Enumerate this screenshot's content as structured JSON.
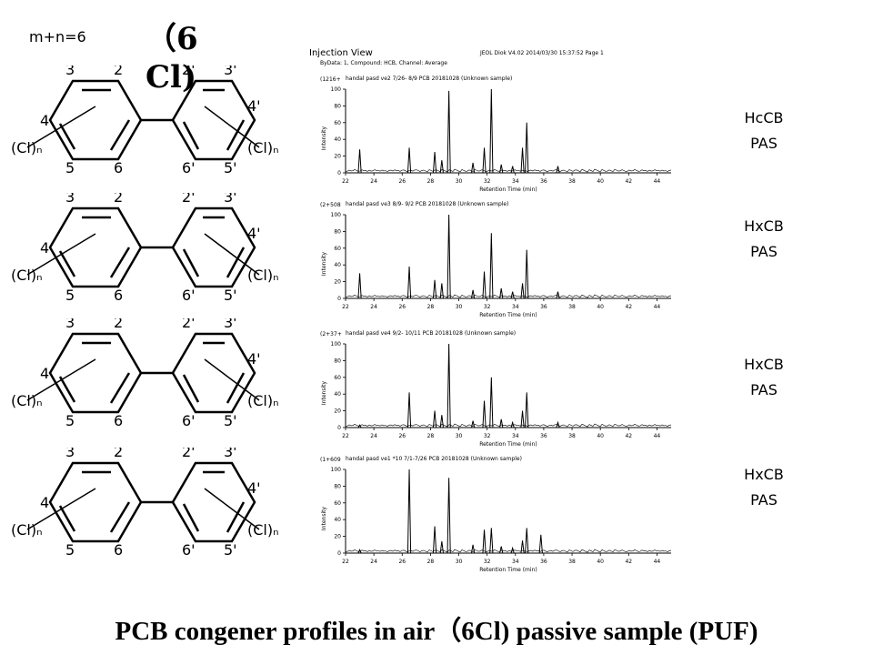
{
  "slide": {
    "mn_label": "m+n=6",
    "big_tag": "（6Cl)",
    "bottom_title": "PCB congener profiles in air（6Cl) passive sample (PUF)"
  },
  "molecule": {
    "pos_3": "3",
    "pos_2": "2",
    "pos_2p": "2'",
    "pos_3p": "3'",
    "pos_4": "4",
    "pos_4p": "4'",
    "cl_left": "(Cl)ₙ",
    "cl_right": "(Cl)ₙ",
    "pos_5": "5",
    "pos_6": "6",
    "pos_6p": "6'",
    "pos_5p": "5'"
  },
  "header": {
    "title": "Injection View",
    "info": "JEOL Diok V4.02  2014/03/30  15:37:52   Page 1",
    "subtitle": "ByData: 1, Compound: HCB, Channel: Average"
  },
  "panels": [
    {
      "scale": "(1216+",
      "caption": "handal pasd ve2 7/26- 8/9 PCB 20181028 (Unknown sample)",
      "side_line1": "HcCB",
      "side_line2": "PAS"
    },
    {
      "scale": "(2+508",
      "caption": "handal pasd ve3 8/9- 9/2 PCB 20181028 (Unknown sample)",
      "side_line1": "HxCB",
      "side_line2": "PAS"
    },
    {
      "scale": "(2+37+",
      "caption": "handal pasd ve4 9/2- 10/11 PCB 20181028 (Unknown sample)",
      "side_line1": "HxCB",
      "side_line2": "PAS"
    },
    {
      "scale": "(1+609",
      "caption": "handal pasd ve1 *10 7/1-7/26 PCB 20181028 (Unknown sample)",
      "side_line1": "HxCB",
      "side_line2": "PAS"
    }
  ],
  "axes": {
    "ylabel": "Intensity",
    "xlabel": "Retention Time (min)",
    "y_ticks": [
      "100",
      "80",
      "60",
      "40",
      "20",
      "0"
    ],
    "x_ticks": [
      "22",
      "24",
      "26",
      "28",
      "30",
      "32",
      "34",
      "36",
      "38",
      "40",
      "42",
      "44"
    ]
  },
  "chart_data": [
    {
      "type": "line",
      "xlabel": "Retention Time (min)",
      "ylabel": "Intensity",
      "xlim": [
        22,
        45
      ],
      "ylim": [
        0,
        100
      ],
      "x": [
        23.0,
        26.5,
        28.3,
        28.8,
        29.3,
        31.0,
        31.8,
        32.3,
        33.0,
        33.8,
        34.5,
        34.8,
        37.0
      ],
      "values": [
        28,
        30,
        25,
        15,
        98,
        12,
        30,
        100,
        10,
        8,
        30,
        60,
        8
      ]
    },
    {
      "type": "line",
      "xlabel": "Retention Time (min)",
      "ylabel": "Intensity",
      "xlim": [
        22,
        45
      ],
      "ylim": [
        0,
        100
      ],
      "x": [
        23.0,
        26.5,
        28.3,
        28.8,
        29.3,
        31.0,
        31.8,
        32.3,
        33.0,
        33.8,
        34.5,
        34.8,
        37.0
      ],
      "values": [
        30,
        38,
        22,
        18,
        100,
        10,
        32,
        78,
        12,
        8,
        18,
        58,
        8
      ]
    },
    {
      "type": "line",
      "xlabel": "Retention Time (min)",
      "ylabel": "Intensity",
      "xlim": [
        22,
        45
      ],
      "ylim": [
        0,
        100
      ],
      "x": [
        23.0,
        26.5,
        28.3,
        28.8,
        29.3,
        31.0,
        31.8,
        32.3,
        33.0,
        33.8,
        34.5,
        34.8,
        37.0
      ],
      "values": [
        3,
        42,
        20,
        15,
        100,
        8,
        32,
        60,
        10,
        6,
        20,
        42,
        6
      ]
    },
    {
      "type": "line",
      "xlabel": "Retention Time (min)",
      "ylabel": "Intensity",
      "xlim": [
        22,
        45
      ],
      "ylim": [
        0,
        100
      ],
      "x": [
        23.0,
        26.5,
        28.3,
        28.8,
        29.3,
        31.0,
        31.8,
        32.3,
        33.0,
        33.8,
        34.5,
        34.8,
        35.8
      ],
      "values": [
        4,
        100,
        32,
        14,
        90,
        10,
        28,
        30,
        8,
        6,
        15,
        30,
        22
      ]
    }
  ]
}
